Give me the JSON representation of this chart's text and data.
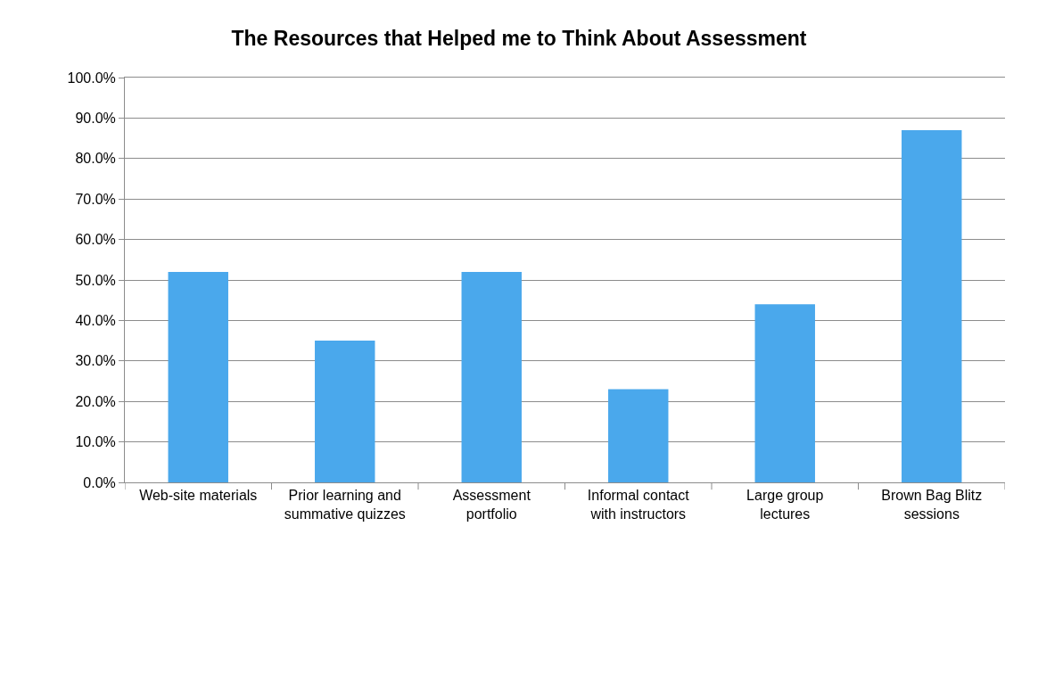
{
  "chart_data": {
    "type": "bar",
    "title": "The Resources that Helped me to Think About Assessment",
    "categories": [
      "Web-site materials",
      "Prior learning and summative quizzes",
      "Assessment portfolio",
      "Informal contact with instructors",
      "Large group lectures",
      "Brown Bag Blitz sessions"
    ],
    "values": [
      52,
      35,
      52,
      23,
      44,
      87
    ],
    "color": "#4aa8ec",
    "ylim": [
      0,
      100
    ],
    "yticks": [
      {
        "value": 0,
        "label": "0.0%"
      },
      {
        "value": 10,
        "label": "10.0%"
      },
      {
        "value": 20,
        "label": "20.0%"
      },
      {
        "value": 30,
        "label": "30.0%"
      },
      {
        "value": 40,
        "label": "40.0%"
      },
      {
        "value": 50,
        "label": "50.0%"
      },
      {
        "value": 60,
        "label": "60.0%"
      },
      {
        "value": 70,
        "label": "70.0%"
      },
      {
        "value": 80,
        "label": "80.0%"
      },
      {
        "value": 90,
        "label": "90.0%"
      },
      {
        "value": 100,
        "label": "100.0%"
      }
    ],
    "grid": "y"
  }
}
